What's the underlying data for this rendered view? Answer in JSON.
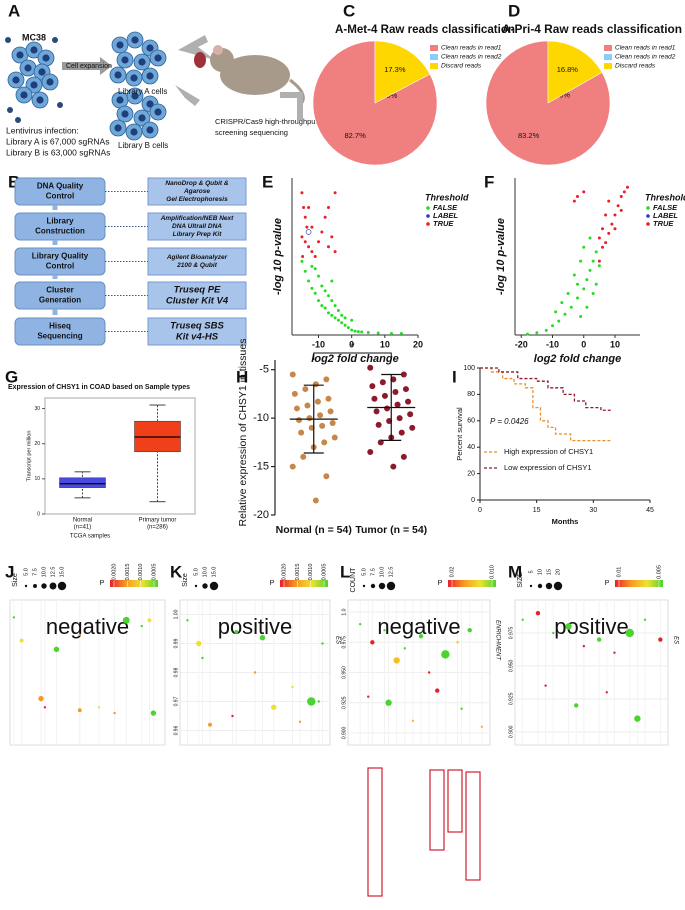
{
  "panel_labels": [
    "A",
    "B",
    "C",
    "D",
    "E",
    "F",
    "G",
    "H",
    "I",
    "J",
    "K",
    "L",
    "M"
  ],
  "diagram_a": {
    "cell_line": "MC38",
    "step": "Cell expansion",
    "library_a": "Library A cells",
    "library_b": "Library B cells",
    "infection": [
      "Lentivirus infection:",
      "Library A is 67,000 sgRNAs",
      "Library B is 63,000 sgRNAs"
    ],
    "screening": [
      "CRISPR/Cas9 high-throughput",
      "screening sequencing"
    ]
  },
  "diagram_b": {
    "steps": [
      {
        "label": [
          "DNA Quality",
          "Control"
        ],
        "method": [
          "NanoDrop & Qubit &",
          "Agarose",
          "Gel Electrophoresis"
        ]
      },
      {
        "label": [
          "Library",
          "Construction"
        ],
        "method": [
          "Amplification/NEB Next",
          "DNA Ultrall DNA",
          "Library Prep Kit"
        ]
      },
      {
        "label": [
          "Library Quality",
          "Control"
        ],
        "method": [
          "Agilent Bioanalyzer",
          "2100 & Qubit"
        ]
      },
      {
        "label": [
          "Cluster",
          "Generation"
        ],
        "method": [
          "Truseq PE",
          "Cluster Kit V4"
        ]
      },
      {
        "label": [
          "Hiseq",
          "Sequencing"
        ],
        "method": [
          "Truseq SBS",
          "Kit v4-HS"
        ]
      }
    ]
  },
  "chart_data": [
    {
      "type": "pie",
      "title": "A-Met-4 Raw reads classification",
      "categories": [
        "Clean reads in read1",
        "Clean reads in read2",
        "Discard reads"
      ],
      "values": [
        82.7,
        0.0,
        17.3
      ],
      "value_labels": [
        "82.7%",
        "0.0%",
        "17.3%"
      ],
      "colors": [
        "#f08080",
        "#87cefa",
        "#ffd700"
      ]
    },
    {
      "type": "pie",
      "title": "A-Pri-4 Raw reads classification",
      "categories": [
        "Clean reads in read1",
        "Clean reads in read2",
        "Discard reads"
      ],
      "values": [
        83.2,
        0.0,
        16.8
      ],
      "value_labels": [
        "83.2%",
        "0.0%",
        "16.8%"
      ],
      "colors": [
        "#f08080",
        "#87cefa",
        "#ffd700"
      ]
    },
    {
      "type": "scatter",
      "x_label": "log2 fold change",
      "y_label": "-log 10 p-value",
      "legend_title": "Threshold",
      "xlim": [
        -18,
        20
      ],
      "xticks": [
        -10,
        0,
        10,
        20
      ],
      "ylim": [
        0,
        3.2
      ],
      "series": [
        {
          "name": "FALSE",
          "color": "#22dd22",
          "x": [
            -15,
            -14,
            -13,
            -12,
            -11,
            -10,
            -9,
            -8,
            -7,
            -6,
            -5,
            -4,
            -3,
            -2,
            -1,
            0,
            1,
            2,
            3,
            5,
            8,
            12,
            15,
            -12,
            -10,
            -8,
            -6,
            -4,
            -9,
            -7,
            -5,
            -3,
            -11,
            -2,
            0,
            -6
          ],
          "values": [
            1.5,
            1.3,
            1.1,
            0.95,
            0.85,
            0.7,
            0.6,
            0.55,
            0.45,
            0.4,
            0.35,
            0.3,
            0.25,
            0.2,
            0.15,
            0.1,
            0.08,
            0.07,
            0.06,
            0.05,
            0.04,
            0.03,
            0.03,
            1.4,
            1.2,
            0.9,
            0.7,
            0.5,
            1.0,
            0.8,
            0.6,
            0.4,
            1.35,
            0.35,
            0.3,
            1.1
          ]
        },
        {
          "name": "LABEL",
          "color": "#3333cc",
          "x": [
            -13
          ],
          "values": [
            2.1
          ]
        },
        {
          "name": "TRUE",
          "color": "#e8202a",
          "x": [
            -15,
            -14.5,
            -14,
            -13.5,
            -15,
            -14,
            -13,
            -12,
            -11,
            -10,
            -9,
            -8,
            -7,
            -6,
            -5,
            -12,
            -14.8,
            -13,
            -7,
            -5
          ],
          "values": [
            2.9,
            2.6,
            2.4,
            2.2,
            2.0,
            1.9,
            1.8,
            1.7,
            1.6,
            1.9,
            2.1,
            2.4,
            1.8,
            2.0,
            1.7,
            2.2,
            1.6,
            2.6,
            2.6,
            2.9
          ]
        }
      ]
    },
    {
      "type": "scatter",
      "x_label": "log2 fold change",
      "y_label": "-log 10 p-value",
      "legend_title": "Threshold",
      "xlim": [
        -22,
        18
      ],
      "xticks": [
        -20,
        -10,
        0,
        10
      ],
      "ylim": [
        0,
        3.4
      ],
      "series": [
        {
          "name": "FALSE",
          "color": "#22dd22",
          "x": [
            -18,
            -15,
            -12,
            -10,
            -8,
            -6,
            -4,
            -2,
            0,
            1,
            2,
            3,
            4,
            5,
            -5,
            -3,
            -1,
            0,
            2,
            -7,
            -9,
            -2,
            1,
            3,
            4,
            -1
          ],
          "values": [
            0.02,
            0.05,
            0.1,
            0.2,
            0.3,
            0.45,
            0.6,
            0.8,
            1.0,
            1.2,
            1.4,
            1.6,
            1.8,
            1.5,
            0.9,
            1.3,
            1.6,
            1.9,
            2.1,
            0.7,
            0.5,
            1.1,
            0.6,
            0.9,
            1.1,
            0.4
          ]
        },
        {
          "name": "LABEL",
          "color": "#3333cc",
          "x": [],
          "values": []
        },
        {
          "name": "TRUE",
          "color": "#e8202a",
          "x": [
            5,
            6,
            7,
            8,
            9,
            10,
            11,
            12,
            13,
            14,
            6,
            7,
            8,
            -3,
            -2,
            0,
            5,
            10,
            12
          ],
          "values": [
            1.6,
            1.9,
            2.0,
            2.2,
            2.4,
            2.6,
            2.8,
            3.0,
            3.1,
            3.2,
            2.3,
            2.6,
            2.9,
            2.9,
            3.0,
            3.1,
            2.1,
            2.3,
            2.7
          ]
        }
      ]
    },
    {
      "type": "box",
      "title": "Expression of CHSY1 in COAD based on Sample types",
      "y_label": "Transcript per million",
      "x_label": "TCGA samples",
      "categories": [
        "Normal",
        "Primary tumor"
      ],
      "category_notes": [
        "(n=41)",
        "(n=286)"
      ],
      "ylim": [
        0,
        33
      ],
      "yticks": [
        0,
        10,
        20,
        30
      ],
      "boxes": [
        {
          "color": "#4a4ae0",
          "min": 4.6,
          "q1": 7.5,
          "median": 8.6,
          "q3": 10.3,
          "max": 12
        },
        {
          "color": "#f0401a",
          "min": 3.5,
          "q1": 17.7,
          "median": 21.9,
          "q3": 26.4,
          "max": 31
        }
      ]
    },
    {
      "type": "strip",
      "y_label": "Relative expression of CHSY1 in tissues",
      "categories": [
        "Normal (n = 54)",
        "Tumor (n = 54)"
      ],
      "annotation": "*",
      "ylim": [
        -20,
        -4
      ],
      "yticks": [
        -5,
        -10,
        -15,
        -20
      ],
      "means": [
        -10.1,
        -8.9
      ],
      "sds": [
        3.5,
        3.4
      ],
      "series": [
        {
          "color": "#c8874a",
          "values": [
            -5.5,
            -6,
            -6.5,
            -7,
            -7.5,
            -8,
            -8.3,
            -8.7,
            -9,
            -9.3,
            -9.7,
            -10,
            -10.2,
            -10.5,
            -10.8,
            -11,
            -11.5,
            -12,
            -12.5,
            -13,
            -14,
            -15,
            -16,
            -18.5
          ]
        },
        {
          "color": "#8b1a2a",
          "values": [
            -4.8,
            -5.5,
            -6,
            -6.3,
            -6.7,
            -7,
            -7.3,
            -7.7,
            -8,
            -8.3,
            -8.6,
            -9,
            -9.3,
            -9.6,
            -10,
            -10.3,
            -10.7,
            -11,
            -11.5,
            -12,
            -12.5,
            -13.5,
            -14,
            -15
          ]
        }
      ]
    },
    {
      "type": "line",
      "step": true,
      "y_label": "Percent survival",
      "x_label": "Months",
      "annotation": "P = 0.0426",
      "xlim": [
        0,
        45
      ],
      "xticks": [
        0,
        15,
        30,
        45
      ],
      "ylim": [
        0,
        100
      ],
      "yticks": [
        0,
        20,
        40,
        60,
        80,
        100
      ],
      "series": [
        {
          "name": "High expression of CHSY1",
          "color": "#e8902a",
          "x": [
            0,
            3,
            6,
            9,
            12,
            14,
            16,
            18,
            20,
            24,
            30,
            35
          ],
          "values": [
            100,
            97,
            92,
            88,
            85,
            70,
            60,
            55,
            50,
            45,
            45,
            45
          ]
        },
        {
          "name": "Low expression of CHSY1",
          "color": "#8b1a2a",
          "x": [
            0,
            5,
            10,
            15,
            18,
            22,
            25,
            28,
            32,
            35
          ],
          "values": [
            100,
            97,
            92,
            90,
            85,
            80,
            75,
            70,
            68,
            68
          ]
        }
      ]
    },
    {
      "type": "bubble",
      "annotation": "negative",
      "size_title": "Size",
      "size_ticks": [
        {
          "value": 5,
          "label": "5.0"
        },
        7.5,
        {
          "value": 10,
          "label": "10.0"
        },
        12.5,
        {
          "value": 15,
          "label": "15.0"
        }
      ],
      "color_title": "P",
      "color_ticks": [
        {
          "value": 0.002,
          "label": "0.0020"
        },
        0.0015,
        {
          "value": 0.001,
          "label": "0.0010"
        },
        0.0005
      ],
      "colorbar": [
        "#e8202a",
        "#f59a23",
        "#f0e130",
        "#4cd330"
      ],
      "xlim": [
        0,
        40
      ],
      "ylim": [
        0.955,
        1.005
      ],
      "x": [
        1,
        3,
        12,
        18,
        30,
        34,
        36,
        8,
        9,
        18,
        23,
        27,
        37
      ],
      "values": [
        0.999,
        0.991,
        0.988,
        0.993,
        0.998,
        0.996,
        0.998,
        0.971,
        0.968,
        0.967,
        0.968,
        0.966,
        0.966
      ],
      "sizes": [
        5,
        7.5,
        10,
        5,
        12.5,
        5,
        7.5,
        10,
        5,
        7.5,
        5,
        5,
        10
      ],
      "p": [
        0.0005,
        0.001,
        0.0005,
        0.0015,
        0.0005,
        0.0005,
        0.001,
        0.0015,
        0.002,
        0.0015,
        0.001,
        0.0015,
        0.0005
      ]
    },
    {
      "type": "bubble",
      "annotation": "positive",
      "y_label": "ES",
      "size_title": "Size",
      "size_ticks": [
        {
          "value": 5,
          "label": "5.0"
        },
        {
          "value": 10,
          "label": "10.0"
        },
        {
          "value": 15,
          "label": "15.0"
        }
      ],
      "color_title": "P",
      "color_ticks": [
        {
          "value": 0.002,
          "label": "0.0020"
        },
        0.0015,
        {
          "value": 0.001,
          "label": "0.0010"
        },
        0.0005
      ],
      "colorbar": [
        "#e8202a",
        "#f59a23",
        "#f0e130",
        "#4cd330"
      ],
      "xlim": [
        0,
        40
      ],
      "ylim": [
        0.955,
        1.005
      ],
      "yticks": [
        {
          "value": 1,
          "label": "1.00"
        },
        0.99,
        0.98,
        0.97,
        0.96
      ],
      "x": [
        2,
        5,
        6,
        15,
        20,
        22,
        30,
        35,
        38,
        8,
        14,
        25,
        32,
        37
      ],
      "values": [
        0.998,
        0.99,
        0.985,
        0.994,
        0.98,
        0.992,
        0.975,
        0.97,
        0.99,
        0.962,
        0.965,
        0.968,
        0.963,
        0.97
      ],
      "sizes": [
        5,
        10,
        5,
        7.5,
        5,
        10,
        5,
        15,
        5,
        7.5,
        5,
        10,
        5,
        5
      ],
      "p": [
        0.0005,
        0.001,
        0.0005,
        0.0005,
        0.0015,
        0.0005,
        0.001,
        0.0005,
        0.0005,
        0.0015,
        0.002,
        0.001,
        0.0015,
        0.0005
      ]
    },
    {
      "type": "bubble",
      "annotation": "negative",
      "y_label": "ENRICHMENT",
      "size_title": "COUNT",
      "size_ticks": [
        {
          "value": 5,
          "label": "5.0"
        },
        7.5,
        {
          "value": 10,
          "label": "10.0"
        },
        12.5
      ],
      "color_title": "P",
      "color_ticks": [
        0.02,
        {
          "value": 0.01,
          "label": "0.010"
        }
      ],
      "colorbar": [
        "#e8202a",
        "#f59a23",
        "#f0e130",
        "#4cd330"
      ],
      "xlim": [
        0,
        35
      ],
      "ylim": [
        0.89,
        1.01
      ],
      "yticks": [
        {
          "value": 1,
          "label": "1.0"
        },
        0.975,
        {
          "value": 0.95,
          "label": "0.950"
        },
        0.925,
        {
          "value": 0.9,
          "label": "0.900"
        }
      ],
      "x": [
        3,
        6,
        9,
        12,
        14,
        18,
        20,
        24,
        27,
        30,
        5,
        10,
        16,
        22,
        28,
        33
      ],
      "values": [
        0.99,
        0.975,
        0.985,
        0.96,
        0.97,
        0.98,
        0.95,
        0.965,
        0.975,
        0.985,
        0.93,
        0.925,
        0.91,
        0.935,
        0.92,
        0.905
      ],
      "sizes": [
        5,
        7.5,
        5,
        10,
        5,
        7.5,
        5,
        12.5,
        5,
        7.5,
        5,
        10,
        5,
        7.5,
        5,
        5
      ],
      "p": [
        0.01,
        0.02,
        0.01,
        0.015,
        0.01,
        0.01,
        0.02,
        0.01,
        0.015,
        0.01,
        0.02,
        0.01,
        0.015,
        0.02,
        0.01,
        0.015
      ]
    },
    {
      "type": "bubble",
      "annotation": "positive",
      "y_label": "ES",
      "size_title": "SIZE",
      "size_ticks": [
        5,
        10,
        15,
        20
      ],
      "color_title": "P",
      "color_ticks": [
        0.01,
        0.005
      ],
      "colorbar": [
        "#e8202a",
        "#f59a23",
        "#f0e130",
        "#4cd330"
      ],
      "xlim": [
        0,
        40
      ],
      "ylim": [
        0.89,
        1.0
      ],
      "yticks": [
        0.975,
        {
          "value": 0.95,
          "label": "0.950"
        },
        0.925,
        {
          "value": 0.9,
          "label": "0.900"
        }
      ],
      "x": [
        2,
        6,
        10,
        14,
        18,
        22,
        26,
        30,
        34,
        38,
        8,
        16,
        24,
        32
      ],
      "values": [
        0.985,
        0.99,
        0.975,
        0.98,
        0.965,
        0.97,
        0.96,
        0.975,
        0.985,
        0.97,
        0.935,
        0.92,
        0.93,
        0.91
      ],
      "sizes": [
        5,
        10,
        5,
        15,
        5,
        10,
        5,
        20,
        5,
        10,
        5,
        10,
        5,
        15
      ],
      "p": [
        0.005,
        0.01,
        0.005,
        0.005,
        0.01,
        0.005,
        0.01,
        0.005,
        0.005,
        0.01,
        0.01,
        0.005,
        0.01,
        0.005
      ]
    }
  ]
}
